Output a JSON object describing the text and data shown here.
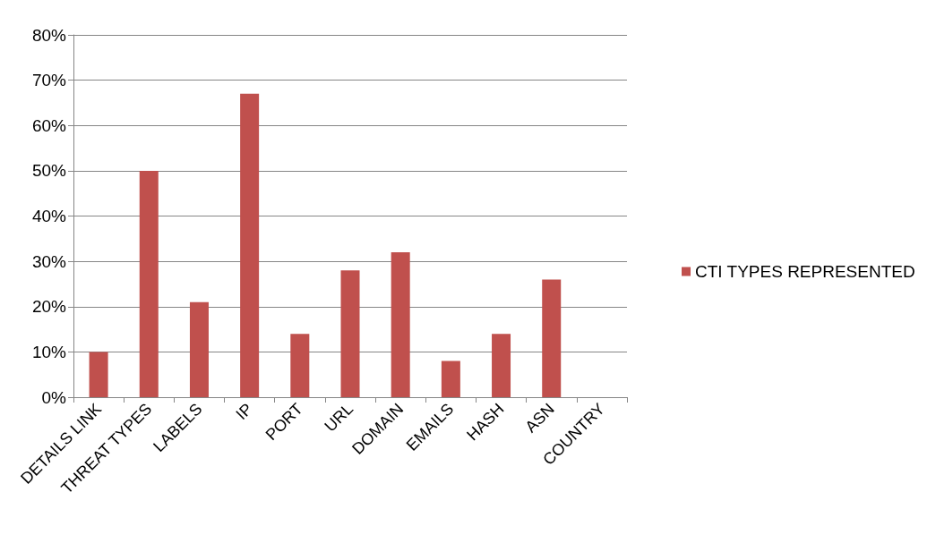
{
  "chart_data": {
    "type": "bar",
    "categories": [
      "DETAILS LINK",
      "THREAT TYPES",
      "LABELS",
      "IP",
      "PORT",
      "URL",
      "DOMAIN",
      "EMAILS",
      "HASH",
      "ASN",
      "COUNTRY"
    ],
    "series": [
      {
        "name": "CTI TYPES REPRESENTED",
        "color": "#c0504d",
        "values": [
          10,
          50,
          21,
          67,
          14,
          28,
          32,
          8,
          14,
          26,
          0
        ]
      }
    ],
    "ylim": [
      0,
      80
    ],
    "yticks": [
      {
        "value": 0,
        "label": "0%"
      },
      {
        "value": 10,
        "label": "10%"
      },
      {
        "value": 20,
        "label": "20%"
      },
      {
        "value": 30,
        "label": "30%"
      },
      {
        "value": 40,
        "label": "40%"
      },
      {
        "value": 50,
        "label": "50%"
      },
      {
        "value": 60,
        "label": "60%"
      },
      {
        "value": 70,
        "label": "70%"
      },
      {
        "value": 80,
        "label": "80%"
      }
    ],
    "grid": "y",
    "legend": "right"
  }
}
